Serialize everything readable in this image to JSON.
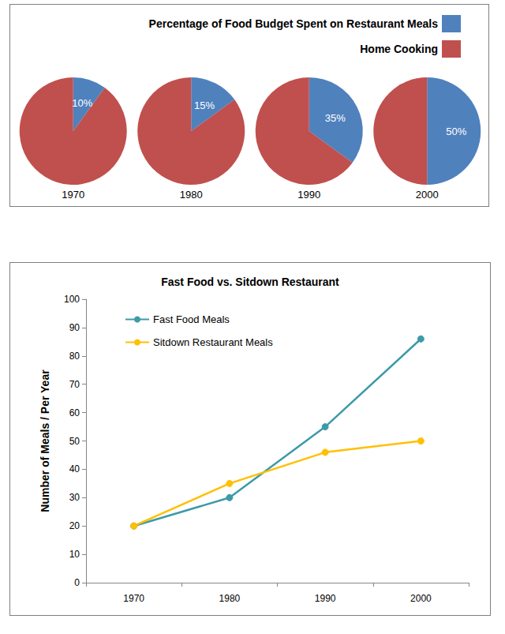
{
  "chart_data": [
    {
      "type": "pie",
      "categories": [
        "Percentage of Food Budget Spent on Restaurant Meals",
        "Home Cooking"
      ],
      "colors": [
        "#4f81bd",
        "#c0504d"
      ],
      "legend": "top right",
      "data_labels": true,
      "series": [
        {
          "name": "1970",
          "values": [
            10,
            90
          ],
          "value_labels": [
            "10%",
            null
          ]
        },
        {
          "name": "1980",
          "values": [
            15,
            85
          ],
          "value_labels": [
            "15%",
            null
          ]
        },
        {
          "name": "1990",
          "values": [
            35,
            65
          ],
          "value_labels": [
            "35%",
            null
          ]
        },
        {
          "name": "2000",
          "values": [
            50,
            50
          ],
          "value_labels": [
            "50%",
            null
          ]
        }
      ]
    },
    {
      "type": "line",
      "title": "Fast Food vs. Sitdown Restaurant",
      "ylabel": "Number of Meals / Per Year",
      "categories": [
        "1970",
        "1980",
        "1990",
        "2000"
      ],
      "series": [
        {
          "name": "Fast Food Meals",
          "color": "#3d9aa8",
          "values": [
            20,
            30,
            55,
            86
          ]
        },
        {
          "name": "Sitdown Restaurant Meals",
          "color": "#ffc000",
          "values": [
            20,
            35,
            46,
            50
          ]
        }
      ],
      "ylim": [
        0,
        100
      ],
      "yticks": [
        0,
        10,
        20,
        30,
        40,
        50,
        60,
        70,
        80,
        90,
        100
      ],
      "grid": false,
      "legend": "top left",
      "marker": "circle"
    }
  ]
}
